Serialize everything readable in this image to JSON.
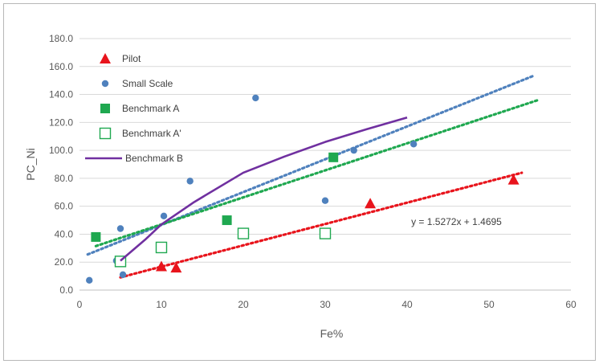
{
  "chart_data": {
    "type": "scatter",
    "title": "",
    "xlabel": "Fe%",
    "ylabel": "PC_Ni",
    "xlim": [
      0,
      60
    ],
    "ylim": [
      0,
      180
    ],
    "x_ticks": [
      "0",
      "10",
      "20",
      "30",
      "40",
      "50",
      "60"
    ],
    "y_ticks": [
      "0.0",
      "20.0",
      "40.0",
      "60.0",
      "80.0",
      "100.0",
      "120.0",
      "140.0",
      "160.0",
      "180.0"
    ],
    "grid": "horizontal",
    "legend_position": "top-left",
    "series": [
      {
        "name": "Pilot",
        "marker": "triangle",
        "color": "#e8141c",
        "points": [
          [
            10.0,
            17.0
          ],
          [
            11.8,
            16.0
          ],
          [
            35.5,
            62.0
          ],
          [
            53.0,
            79.0
          ]
        ],
        "trendline": {
          "type": "linear",
          "x_range": [
            5.0,
            54.0
          ],
          "slope": 1.5272,
          "intercept": 1.4695,
          "color": "#e8141c"
        }
      },
      {
        "name": "Small Scale",
        "marker": "circle",
        "color": "#4f81bd",
        "points": [
          [
            1.2,
            7.0
          ],
          [
            4.5,
            21.0
          ],
          [
            5.0,
            44.0
          ],
          [
            5.3,
            11.0
          ],
          [
            10.3,
            53.0
          ],
          [
            13.5,
            78.0
          ],
          [
            21.5,
            137.5
          ],
          [
            30.0,
            64.0
          ],
          [
            33.5,
            100.0
          ],
          [
            40.8,
            104.5
          ]
        ],
        "trendline": {
          "type": "linear",
          "x_range": [
            1.0,
            55.5
          ],
          "start_y": 25.5,
          "end_y": 153.5,
          "color": "#4f81bd"
        }
      },
      {
        "name": "Benchmark A",
        "marker": "square",
        "color": "#1fa850",
        "points": [
          [
            2.0,
            38.0
          ],
          [
            18.0,
            50.0
          ],
          [
            31.0,
            95.0
          ]
        ],
        "trendline": {
          "type": "linear",
          "x_range": [
            2.0,
            56.0
          ],
          "start_y": 31.5,
          "end_y": 136.0,
          "color": "#1fa850"
        }
      },
      {
        "name": "Benchmark A'",
        "marker": "open-square",
        "color": "#1fa850",
        "points": [
          [
            5.0,
            20.5
          ],
          [
            10.0,
            30.5
          ],
          [
            20.0,
            40.5
          ],
          [
            30.0,
            40.5
          ]
        ]
      },
      {
        "name": "Benchmark B",
        "marker": "line",
        "color": "#7030a0",
        "points": [
          [
            5.0,
            21.0
          ],
          [
            8.0,
            36.0
          ],
          [
            10.0,
            47.0
          ],
          [
            14.0,
            63.0
          ],
          [
            20.0,
            84.0
          ],
          [
            25.0,
            95.5
          ],
          [
            30.0,
            106.0
          ],
          [
            35.0,
            115.0
          ],
          [
            40.0,
            123.5
          ]
        ]
      }
    ],
    "annotations": [
      {
        "text": "y = 1.5272x  + 1.4695",
        "x": 40.5,
        "y": 49.0
      }
    ]
  }
}
